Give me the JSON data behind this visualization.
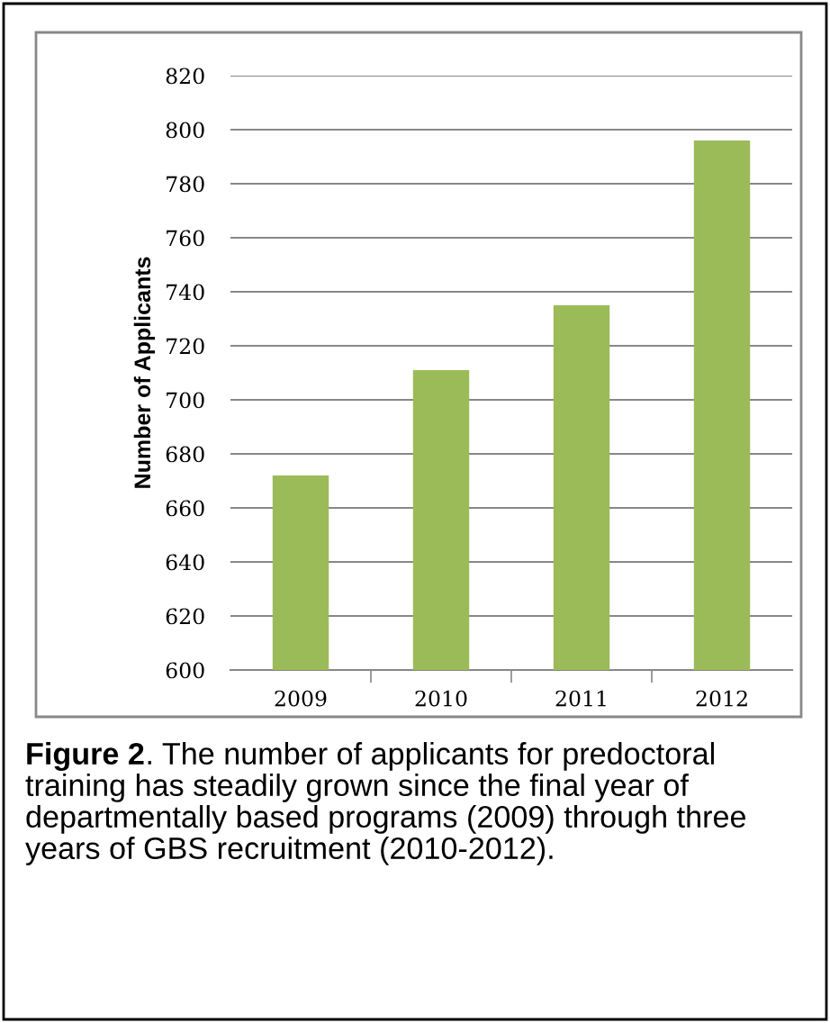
{
  "chart_data": {
    "type": "bar",
    "ylabel": "Number of Applicants",
    "categories": [
      "2009",
      "2010",
      "2011",
      "2012"
    ],
    "values": [
      672,
      711,
      735,
      796
    ],
    "color": "#9bbb59",
    "ylim": [
      600,
      820
    ],
    "yticks": [
      600,
      620,
      640,
      660,
      680,
      700,
      720,
      740,
      760,
      780,
      800,
      820
    ],
    "grid": "y",
    "annotations": [
      "Figure 2",
      ". The number of applicants for predoctoral training has steadily grown since the final year of departmentally based programs (2009) through three years of GBS recruitment (2010-2012)."
    ]
  }
}
